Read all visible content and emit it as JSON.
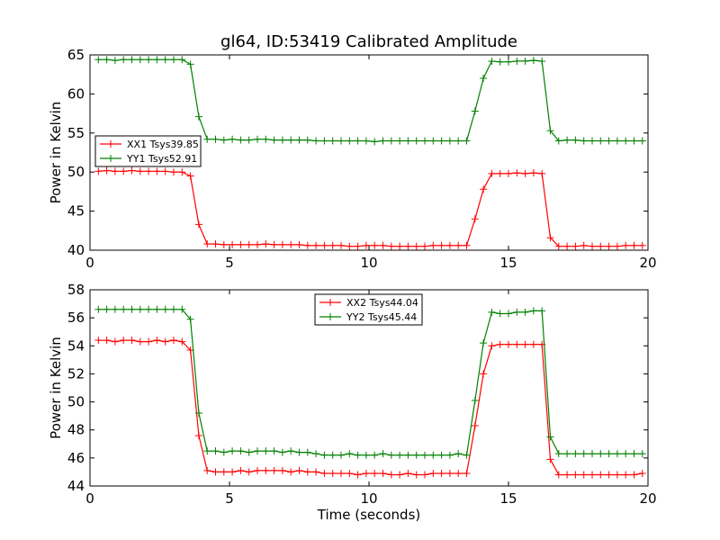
{
  "title": "gl64, ID:53419 Calibrated Amplitude",
  "chart_data": [
    {
      "type": "line",
      "title": "gl64, ID:53419 Calibrated Amplitude",
      "xlabel": "",
      "ylabel": "Power in Kelvin",
      "xlim": [
        0,
        20
      ],
      "ylim": [
        40,
        65
      ],
      "xticks": [
        0,
        5,
        10,
        15,
        20
      ],
      "yticks": [
        40,
        45,
        50,
        55,
        60,
        65
      ],
      "grid": false,
      "legend_position": "center-left",
      "x": [
        0.3,
        0.6,
        0.9,
        1.2,
        1.5,
        1.8,
        2.1,
        2.4,
        2.7,
        3.0,
        3.3,
        3.6,
        3.9,
        4.2,
        4.5,
        4.8,
        5.1,
        5.4,
        5.7,
        6.0,
        6.3,
        6.6,
        6.9,
        7.2,
        7.5,
        7.8,
        8.1,
        8.4,
        8.7,
        9.0,
        9.3,
        9.6,
        9.9,
        10.2,
        10.5,
        10.8,
        11.1,
        11.4,
        11.7,
        12.0,
        12.3,
        12.6,
        12.9,
        13.2,
        13.5,
        13.8,
        14.1,
        14.4,
        14.7,
        15.0,
        15.3,
        15.6,
        15.9,
        16.2,
        16.5,
        16.8,
        17.1,
        17.4,
        17.7,
        18.0,
        18.3,
        18.6,
        18.9,
        19.2,
        19.5,
        19.8
      ],
      "series": [
        {
          "name": "XX1 Tsys39.85",
          "color": "#ff0000",
          "values": [
            50.1,
            50.2,
            50.1,
            50.1,
            50.2,
            50.1,
            50.1,
            50.1,
            50.1,
            50.0,
            50.0,
            49.5,
            43.3,
            40.8,
            40.8,
            40.7,
            40.7,
            40.7,
            40.7,
            40.7,
            40.8,
            40.7,
            40.7,
            40.7,
            40.7,
            40.6,
            40.6,
            40.6,
            40.6,
            40.6,
            40.5,
            40.5,
            40.6,
            40.6,
            40.6,
            40.5,
            40.5,
            40.5,
            40.5,
            40.5,
            40.6,
            40.6,
            40.6,
            40.6,
            40.6,
            44.0,
            47.8,
            49.8,
            49.8,
            49.8,
            49.9,
            49.8,
            49.9,
            49.8,
            41.6,
            40.5,
            40.5,
            40.5,
            40.6,
            40.5,
            40.5,
            40.5,
            40.5,
            40.6,
            40.6,
            40.6
          ]
        },
        {
          "name": "YY1 Tsys52.91",
          "color": "#008000",
          "values": [
            64.4,
            64.4,
            64.3,
            64.4,
            64.4,
            64.4,
            64.4,
            64.4,
            64.4,
            64.4,
            64.4,
            63.8,
            57.1,
            54.2,
            54.2,
            54.1,
            54.2,
            54.1,
            54.1,
            54.2,
            54.2,
            54.1,
            54.1,
            54.1,
            54.1,
            54.1,
            54.0,
            54.0,
            54.0,
            54.0,
            54.0,
            54.0,
            54.0,
            53.9,
            54.0,
            54.0,
            54.0,
            54.0,
            54.0,
            54.0,
            54.0,
            54.0,
            54.0,
            54.0,
            54.0,
            57.8,
            62.0,
            64.2,
            64.1,
            64.1,
            64.2,
            64.2,
            64.3,
            64.2,
            55.3,
            54.0,
            54.1,
            54.1,
            54.0,
            54.0,
            54.0,
            54.0,
            54.0,
            54.0,
            54.0,
            54.0
          ]
        }
      ]
    },
    {
      "type": "line",
      "title": "",
      "xlabel": "Time (seconds)",
      "ylabel": "Power in Kelvin",
      "xlim": [
        0,
        20
      ],
      "ylim": [
        44,
        58
      ],
      "xticks": [
        0,
        5,
        10,
        15,
        20
      ],
      "yticks": [
        44,
        46,
        48,
        50,
        52,
        54,
        56,
        58
      ],
      "grid": false,
      "legend_position": "upper-center",
      "x": [
        0.3,
        0.6,
        0.9,
        1.2,
        1.5,
        1.8,
        2.1,
        2.4,
        2.7,
        3.0,
        3.3,
        3.6,
        3.9,
        4.2,
        4.5,
        4.8,
        5.1,
        5.4,
        5.7,
        6.0,
        6.3,
        6.6,
        6.9,
        7.2,
        7.5,
        7.8,
        8.1,
        8.4,
        8.7,
        9.0,
        9.3,
        9.6,
        9.9,
        10.2,
        10.5,
        10.8,
        11.1,
        11.4,
        11.7,
        12.0,
        12.3,
        12.6,
        12.9,
        13.2,
        13.5,
        13.8,
        14.1,
        14.4,
        14.7,
        15.0,
        15.3,
        15.6,
        15.9,
        16.2,
        16.5,
        16.8,
        17.1,
        17.4,
        17.7,
        18.0,
        18.3,
        18.6,
        18.9,
        19.2,
        19.5,
        19.8
      ],
      "series": [
        {
          "name": "XX2 Tsys44.04",
          "color": "#ff0000",
          "values": [
            54.4,
            54.4,
            54.3,
            54.4,
            54.4,
            54.3,
            54.3,
            54.4,
            54.3,
            54.4,
            54.3,
            53.7,
            47.6,
            45.1,
            45.0,
            45.0,
            45.0,
            45.1,
            45.0,
            45.1,
            45.1,
            45.1,
            45.1,
            45.0,
            45.1,
            45.0,
            45.0,
            44.9,
            44.9,
            44.9,
            44.9,
            44.8,
            44.9,
            44.9,
            44.9,
            44.8,
            44.8,
            44.9,
            44.8,
            44.8,
            44.9,
            44.9,
            44.9,
            44.9,
            44.9,
            48.3,
            52.0,
            54.0,
            54.1,
            54.1,
            54.1,
            54.1,
            54.1,
            54.1,
            45.9,
            44.8,
            44.8,
            44.8,
            44.8,
            44.8,
            44.8,
            44.8,
            44.8,
            44.8,
            44.8,
            44.9
          ]
        },
        {
          "name": "YY2 Tsys45.44",
          "color": "#008000",
          "values": [
            56.6,
            56.6,
            56.6,
            56.6,
            56.6,
            56.6,
            56.6,
            56.6,
            56.6,
            56.6,
            56.6,
            55.9,
            49.2,
            46.5,
            46.5,
            46.4,
            46.5,
            46.5,
            46.4,
            46.5,
            46.5,
            46.5,
            46.4,
            46.5,
            46.4,
            46.4,
            46.3,
            46.2,
            46.2,
            46.2,
            46.3,
            46.2,
            46.2,
            46.2,
            46.3,
            46.2,
            46.2,
            46.2,
            46.2,
            46.2,
            46.2,
            46.2,
            46.2,
            46.3,
            46.2,
            50.1,
            54.2,
            56.4,
            56.3,
            56.3,
            56.4,
            56.4,
            56.5,
            56.5,
            47.5,
            46.3,
            46.3,
            46.3,
            46.3,
            46.3,
            46.3,
            46.3,
            46.3,
            46.3,
            46.3,
            46.3
          ]
        }
      ]
    }
  ]
}
